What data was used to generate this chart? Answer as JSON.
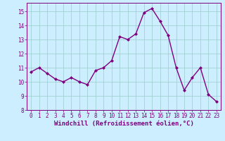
{
  "x": [
    0,
    1,
    2,
    3,
    4,
    5,
    6,
    7,
    8,
    9,
    10,
    11,
    12,
    13,
    14,
    15,
    16,
    17,
    18,
    19,
    20,
    21,
    22,
    23
  ],
  "y": [
    10.7,
    11.0,
    10.6,
    10.2,
    10.0,
    10.3,
    10.0,
    9.8,
    10.8,
    11.0,
    11.5,
    13.2,
    13.0,
    13.4,
    14.9,
    15.2,
    14.3,
    13.3,
    11.0,
    9.4,
    10.3,
    11.0,
    9.1,
    8.6
  ],
  "line_color": "#800080",
  "marker": "D",
  "marker_size": 2,
  "bg_color": "#cceeff",
  "grid_color": "#99cccc",
  "xlabel": "Windchill (Refroidissement éolien,°C)",
  "xlim": [
    -0.5,
    23.5
  ],
  "ylim": [
    8,
    15.6
  ],
  "yticks": [
    8,
    9,
    10,
    11,
    12,
    13,
    14,
    15
  ],
  "xticks": [
    0,
    1,
    2,
    3,
    4,
    5,
    6,
    7,
    8,
    9,
    10,
    11,
    12,
    13,
    14,
    15,
    16,
    17,
    18,
    19,
    20,
    21,
    22,
    23
  ],
  "tick_fontsize": 5.5,
  "xlabel_fontsize": 6.5,
  "line_width": 1.0,
  "line_color_rgb": "#800080",
  "axis_color": "#800080",
  "tick_color": "#800080"
}
